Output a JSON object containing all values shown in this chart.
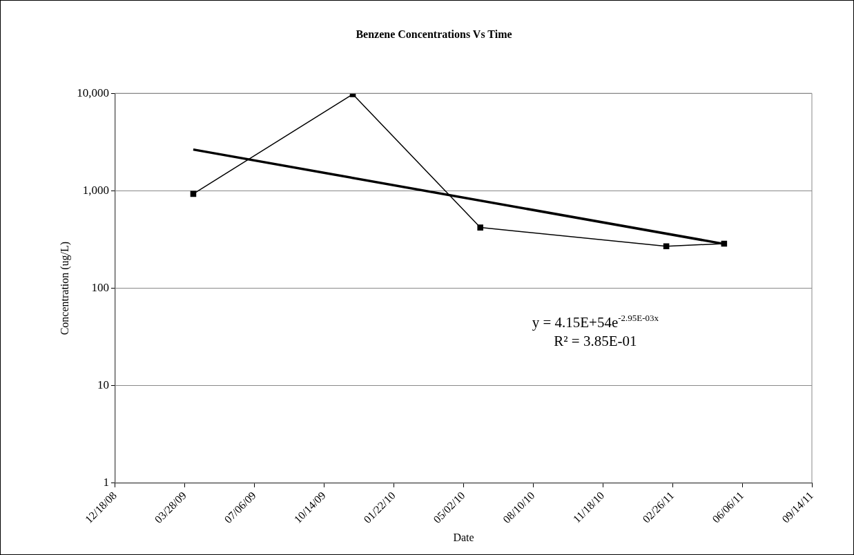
{
  "chart_data": {
    "type": "line",
    "title": "Benzene Concentrations Vs Time",
    "xlabel": "Date",
    "ylabel": "Concentration (ug/L)",
    "x": [
      "2009-04-09",
      "2009-11-24",
      "2010-05-26",
      "2011-02-17",
      "2011-05-11"
    ],
    "series": [
      {
        "color": "#000000",
        "values": [
          930,
          9800,
          420,
          270,
          287
        ]
      },
      {
        "type": "line",
        "color": "#000000",
        "marker": "none",
        "x": [
          "2009-04-09",
          "2011-05-11"
        ],
        "values": [
          2650,
          285
        ]
      }
    ],
    "xlim": [
      "2008-12-18",
      "2011-09-14"
    ],
    "xticks": [
      {
        "value": "2008-12-18",
        "label": "12/18/08"
      },
      {
        "value": "2009-03-28",
        "label": "03/28/09"
      },
      {
        "value": "2009-07-06",
        "label": "07/06/09"
      },
      {
        "value": "2009-10-14",
        "label": "10/14/09"
      },
      {
        "value": "2010-01-22",
        "label": "01/22/10"
      },
      {
        "value": "2010-05-02",
        "label": "05/02/10"
      },
      {
        "value": "2010-08-10",
        "label": "08/10/10"
      },
      {
        "value": "2010-11-18",
        "label": "11/18/10"
      },
      {
        "value": "2011-02-26",
        "label": "02/26/11"
      },
      {
        "value": "2011-06-06",
        "label": "06/06/11"
      },
      {
        "value": "2011-09-14",
        "label": "09/14/11"
      }
    ],
    "ylim": [
      1,
      10000
    ],
    "yticks": [
      1,
      10,
      100,
      {
        "value": 1000,
        "label": "1,000"
      },
      {
        "value": 10000,
        "label": "10,000"
      }
    ],
    "log": true,
    "grid": "y",
    "marker": "square",
    "line_style": "solid",
    "annotations": [
      "y = 4.15E+54e$^{-2.95E-03x}$",
      "R² = 3.85E-01"
    ]
  }
}
